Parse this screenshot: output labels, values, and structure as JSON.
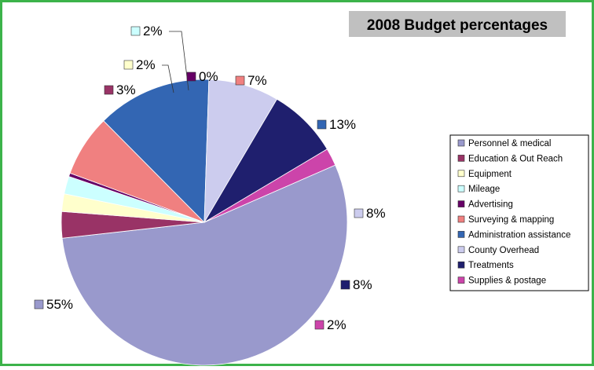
{
  "chart_data": {
    "type": "pie",
    "title": "2008 Budget percentages",
    "legend_position": "right",
    "slices": [
      {
        "name": "Personnel & medical",
        "value": 55,
        "label": "55%",
        "color": "#9999cc"
      },
      {
        "name": "Education & Out Reach",
        "value": 3,
        "label": "3%",
        "color": "#993366"
      },
      {
        "name": "Equipment",
        "value": 2,
        "label": "2%",
        "color": "#ffffcc"
      },
      {
        "name": "Mileage",
        "value": 2,
        "label": "2%",
        "color": "#ccffff"
      },
      {
        "name": "Advertising",
        "value": 0.4,
        "label": "0%",
        "color": "#660066"
      },
      {
        "name": "Surveying & mapping",
        "value": 7,
        "label": "7%",
        "color": "#f08080"
      },
      {
        "name": "Administration assistance",
        "value": 13,
        "label": "13%",
        "color": "#3366b3"
      },
      {
        "name": "County Overhead",
        "value": 8,
        "label": "8%",
        "color": "#ccccee"
      },
      {
        "name": "Treatments",
        "value": 8,
        "label": "8%",
        "color": "#1f1f6e"
      },
      {
        "name": "Supplies & postage",
        "value": 2,
        "label": "2%",
        "color": "#cc44aa"
      }
    ]
  },
  "colors": {
    "frame_border": "#3cb34a",
    "title_box_bg": "#c0c0c0",
    "legend_border": "#000000"
  }
}
